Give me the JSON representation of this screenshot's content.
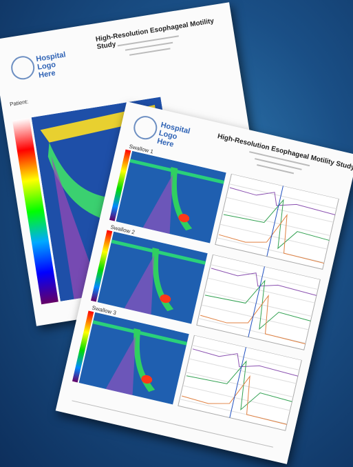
{
  "back_page": {
    "logo": "Hospital Logo Here",
    "title": "High-Resolution Esophageal Motility Study",
    "patient_label": "Patient:"
  },
  "front_page": {
    "logo": "Hospital Logo Here",
    "title": "High-Resolution Esophageal Motility Study",
    "plots": [
      {
        "label": "Swallow 1"
      },
      {
        "label": "Swallow 2"
      },
      {
        "label": "Swallow 3"
      }
    ]
  }
}
